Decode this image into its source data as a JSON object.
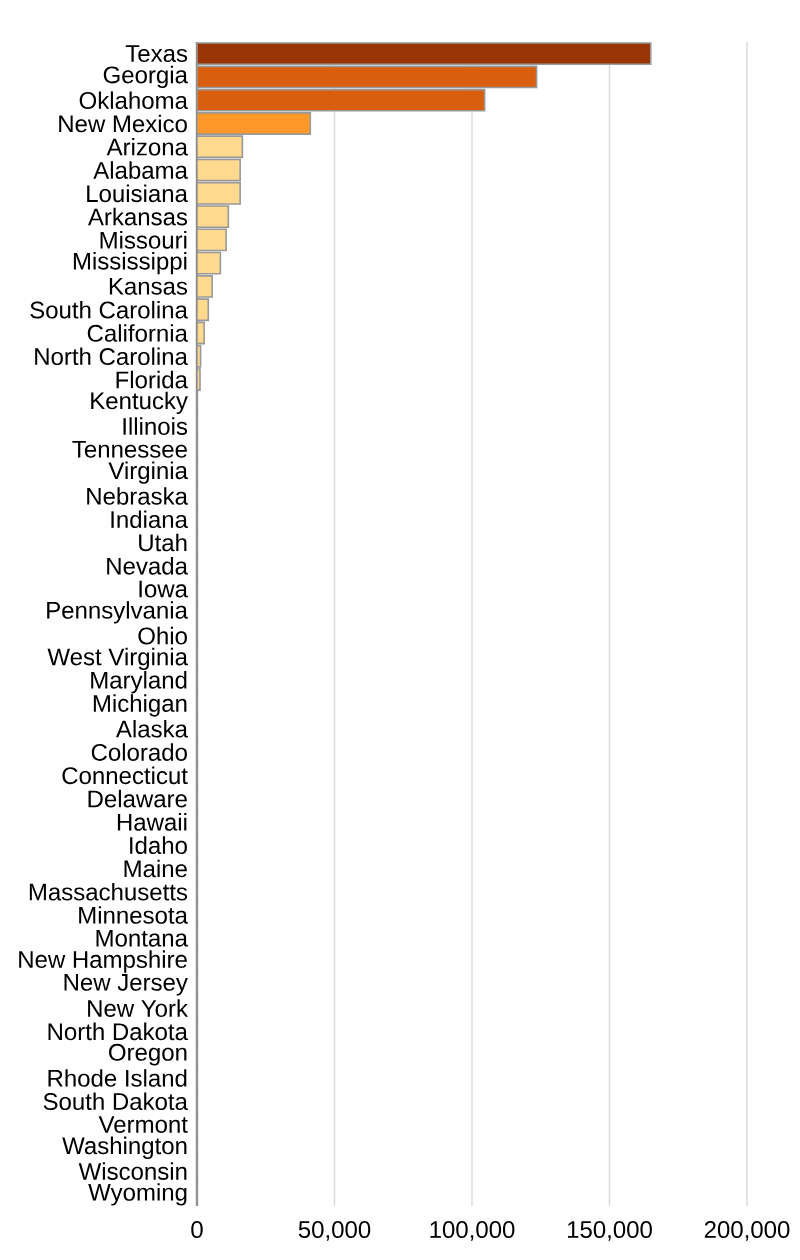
{
  "chart_data": {
    "type": "bar",
    "orientation": "horizontal",
    "categories": [
      "Texas",
      "Georgia",
      "Oklahoma",
      "New Mexico",
      "Arizona",
      "Alabama",
      "Louisiana",
      "Arkansas",
      "Missouri",
      "Mississippi",
      "Kansas",
      "South Carolina",
      "California",
      "North Carolina",
      "Florida",
      "Kentucky",
      "Illinois",
      "Tennessee",
      "Virginia",
      "Nebraska",
      "Indiana",
      "Utah",
      "Nevada",
      "Iowa",
      "Pennsylvania",
      "Ohio",
      "West Virginia",
      "Maryland",
      "Michigan",
      "Alaska",
      "Colorado",
      "Connecticut",
      "Delaware",
      "Hawaii",
      "Idaho",
      "Maine",
      "Massachusetts",
      "Minnesota",
      "Montana",
      "New Hampshire",
      "New Jersey",
      "New York",
      "North Dakota",
      "Oregon",
      "Rhode Island",
      "South Dakota",
      "Vermont",
      "Washington",
      "Wisconsin",
      "Wyoming"
    ],
    "values": [
      165000,
      123500,
      104600,
      41200,
      16500,
      15700,
      15700,
      11400,
      10600,
      8500,
      5500,
      4100,
      2600,
      1300,
      1100,
      0,
      0,
      0,
      0,
      0,
      0,
      0,
      0,
      0,
      0,
      0,
      0,
      0,
      0,
      0,
      0,
      0,
      0,
      0,
      0,
      0,
      0,
      0,
      0,
      0,
      0,
      0,
      0,
      0,
      0,
      0,
      0,
      0,
      0,
      0
    ],
    "colors": [
      "#993404",
      "#d95f0e",
      "#d95f0e",
      "#fe9929",
      "#fed98e",
      "#fed98e",
      "#fed98e",
      "#fed98e",
      "#fed98e",
      "#fed98e",
      "#fed98e",
      "#fed98e",
      "#fed98e",
      "#fed98e",
      "#fed98e",
      "#fed98e",
      "#fed98e",
      "#fed98e",
      "#fed98e",
      "#fed98e",
      "#fed98e",
      "#fed98e",
      "#fed98e",
      "#fed98e",
      "#fed98e",
      "#fed98e",
      "#fed98e",
      "#fed98e",
      "#fed98e",
      "#fed98e",
      "#fed98e",
      "#fed98e",
      "#fed98e",
      "#fed98e",
      "#fed98e",
      "#fed98e",
      "#fed98e",
      "#fed98e",
      "#fed98e",
      "#fed98e",
      "#fed98e",
      "#fed98e",
      "#fed98e",
      "#fed98e",
      "#fed98e",
      "#fed98e",
      "#fed98e",
      "#fed98e",
      "#fed98e",
      "#fed98e"
    ],
    "xlim": [
      0,
      200000
    ],
    "xticks": [
      0,
      {
        "value": 50000,
        "label": "50,000"
      },
      {
        "value": 100000,
        "label": "100,000"
      },
      {
        "value": 150000,
        "label": "150,000"
      },
      {
        "value": 200000,
        "label": "200,000"
      }
    ],
    "grid": "x"
  }
}
